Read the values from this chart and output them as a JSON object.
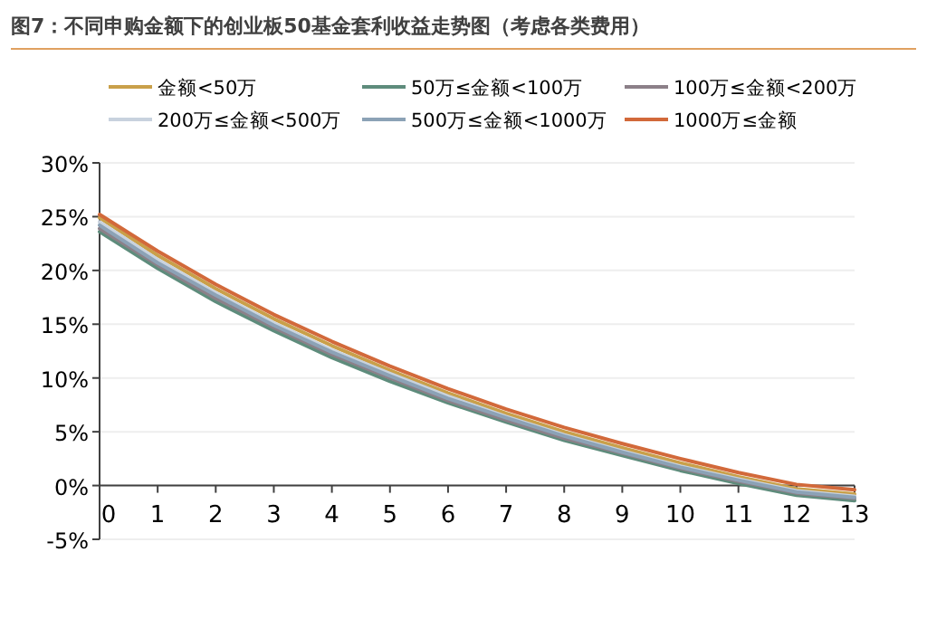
{
  "chart_data": {
    "type": "line",
    "title": "图7：不同申购金额下的创业板50基金套利收益走势图（考虑各类费用）",
    "x": [
      0,
      1,
      2,
      3,
      4,
      5,
      6,
      7,
      8,
      9,
      10,
      11,
      12,
      13
    ],
    "series": [
      {
        "name": "金额<50万",
        "color": "#c9a04a",
        "values": [
          24.9,
          21.4,
          18.3,
          15.5,
          13.0,
          10.7,
          8.6,
          6.7,
          5.0,
          3.5,
          2.1,
          0.8,
          -0.3,
          -0.8
        ]
      },
      {
        "name": "50万≤金额<100万",
        "color": "#5e8c7c",
        "values": [
          23.6,
          20.2,
          17.1,
          14.4,
          11.9,
          9.7,
          7.7,
          5.9,
          4.2,
          2.8,
          1.4,
          0.2,
          -0.9,
          -1.4
        ]
      },
      {
        "name": "100万≤金额<200万",
        "color": "#8c8089",
        "values": [
          23.9,
          20.5,
          17.4,
          14.7,
          12.2,
          10.0,
          7.9,
          6.1,
          4.4,
          3.0,
          1.6,
          0.4,
          -0.7,
          -1.2
        ]
      },
      {
        "name": "200万≤金额<500万",
        "color": "#c8d2de",
        "values": [
          24.5,
          21.0,
          17.9,
          15.1,
          12.6,
          10.4,
          8.3,
          6.4,
          4.7,
          3.2,
          1.8,
          0.6,
          -0.5,
          -1.0
        ]
      },
      {
        "name": "500万≤金额<1000万",
        "color": "#8ca2b6",
        "values": [
          24.2,
          20.7,
          17.7,
          14.9,
          12.4,
          10.2,
          8.1,
          6.3,
          4.6,
          3.1,
          1.7,
          0.5,
          -0.6,
          -1.1
        ]
      },
      {
        "name": "1000万≤金额",
        "color": "#d2693a",
        "values": [
          25.2,
          21.8,
          18.7,
          15.9,
          13.4,
          11.1,
          9.0,
          7.1,
          5.4,
          3.9,
          2.5,
          1.2,
          0.1,
          -0.4
        ]
      }
    ],
    "xlim": [
      0,
      13
    ],
    "xticks": [
      0,
      1,
      2,
      3,
      4,
      5,
      6,
      7,
      8,
      9,
      10,
      11,
      12,
      13
    ],
    "ylim": [
      -5,
      30
    ],
    "yticks": [
      {
        "value": -5,
        "label": "-5%"
      },
      {
        "value": 0,
        "label": "0%"
      },
      {
        "value": 5,
        "label": "5%"
      },
      {
        "value": 10,
        "label": "10%"
      },
      {
        "value": 15,
        "label": "15%"
      },
      {
        "value": 20,
        "label": "20%"
      },
      {
        "value": 25,
        "label": "25%"
      },
      {
        "value": 30,
        "label": "30%"
      }
    ],
    "grid": "y",
    "legend": "top"
  }
}
